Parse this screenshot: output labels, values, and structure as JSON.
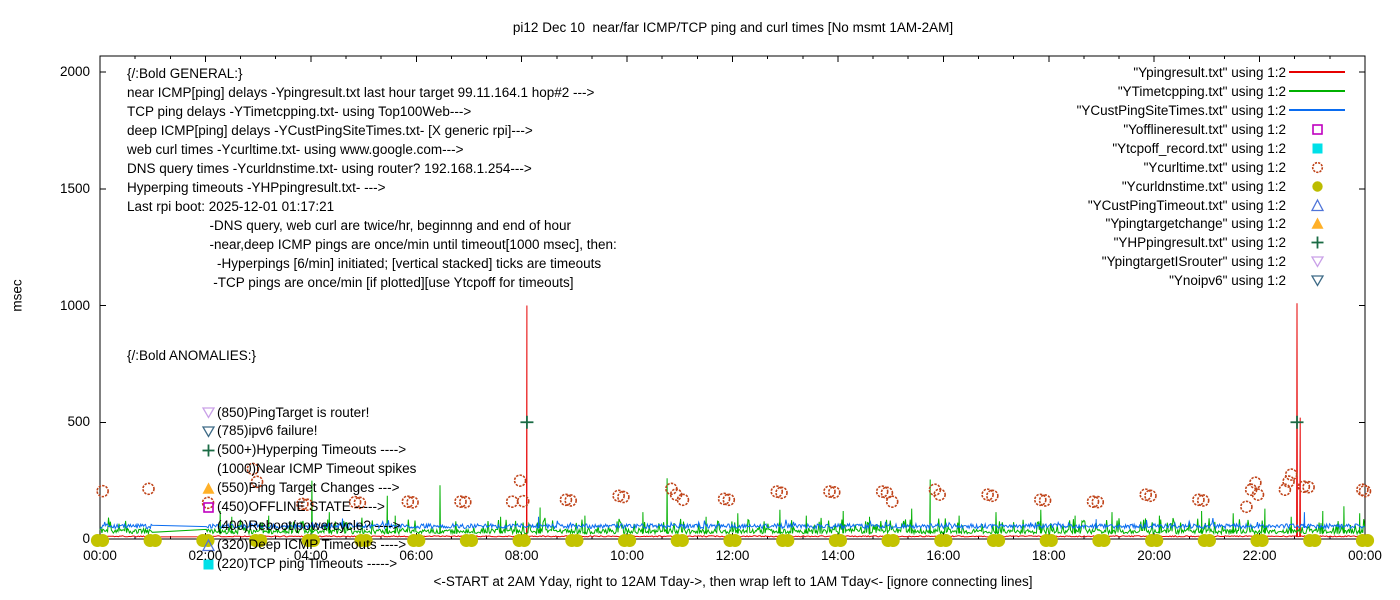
{
  "title": "pi12 Dec 10  near/far ICMP/TCP ping and curl times [No msmt 1AM-2AM]",
  "axes": {
    "ylabel": "msec",
    "x_note": "<-START at 2AM Yday, right to 12AM Tday->, then wrap left to 1AM Tday<- [ignore connecting lines]",
    "y_ticks": [
      0,
      500,
      1000,
      1500,
      2000
    ],
    "x_ticks": [
      "00:00",
      "02:00",
      "04:00",
      "06:00",
      "08:00",
      "10:00",
      "12:00",
      "14:00",
      "16:00",
      "18:00",
      "20:00",
      "22:00",
      "00:00"
    ]
  },
  "general_text": [
    "{/:Bold GENERAL:}",
    "near ICMP[ping] delays -Ypingresult.txt last hour target 99.11.164.1 hop#2 --->",
    "TCP ping delays -YTimetcpping.txt- using Top100Web--->",
    "deep ICMP[ping] delays -YCustPingSiteTimes.txt- [X generic rpi]--->",
    "web curl times -Ycurltime.txt- using www.google.com--->",
    "DNS query times -Ycurldnstime.txt- using router? 192.168.1.254--->",
    "Hyperping timeouts -YHPpingresult.txt- --->",
    "Last rpi boot: 2025-12-01 01:17:21",
    "                      -DNS query, web curl are twice/hr, beginnng and end of hour",
    "                      -near,deep ICMP pings are once/min until timeout[1000 msec], then:",
    "                        -Hyperpings [6/min] initiated; [vertical stacked] ticks are timeouts",
    "                       -TCP pings are once/min [if plotted][use Ytcpoff for timeouts]"
  ],
  "anomalies": {
    "header": "{/:Bold ANOMALIES:}",
    "rows": [
      {
        "marker": "tri-down-open",
        "color": "#c9a0e8",
        "text": "(850)PingTarget is router!"
      },
      {
        "marker": "tri-down-open",
        "color": "#3d6a86",
        "text": "(785)ipv6 failure!"
      },
      {
        "marker": "plus",
        "color": "#1a6b44",
        "text": "(500+)Hyperping Timeouts ---->"
      },
      {
        "marker": null,
        "color": null,
        "text": "(1000)Near ICMP Timeout spikes"
      },
      {
        "marker": "tri-up-filled",
        "color": "#ffb028",
        "text": "(550)Ping Target Changes --->"
      },
      {
        "marker": "square-open",
        "color": "#c000c0",
        "text": "(450)OFFLINE STATE ----->"
      },
      {
        "marker": null,
        "color": null,
        "text": "(400)Reboot/powercycle? ---->"
      },
      {
        "marker": "tri-up-open",
        "color": "#4f74d8",
        "text": "(320)Deep ICMP Timeouts ---->"
      },
      {
        "marker": "square-filled",
        "color": "#00e0e8",
        "text": "(220)TCP ping Timeouts ----->"
      }
    ]
  },
  "legend": [
    {
      "label": "\"Ypingresult.txt\" using 1:2",
      "sample": "line",
      "color": "#e60000"
    },
    {
      "label": "\"YTimetcpping.txt\" using 1:2",
      "sample": "line",
      "color": "#00b000"
    },
    {
      "label": "\"YCustPingSiteTimes.txt\" using 1:2",
      "sample": "line",
      "color": "#0a6cf0"
    },
    {
      "label": "\"Yofflineresult.txt\" using 1:2",
      "sample": "square-open",
      "color": "#c000c0"
    },
    {
      "label": "\"Ytcpoff_record.txt\" using 1:2",
      "sample": "square-filled",
      "color": "#00e0e8"
    },
    {
      "label": "\"Ycurltime.txt\" using 1:2",
      "sample": "circle-open",
      "color": "#c0441a"
    },
    {
      "label": "\"Ycurldnstime.txt\" using 1:2",
      "sample": "circle-filled",
      "color": "#bcbc00"
    },
    {
      "label": "\"YCustPingTimeout.txt\" using 1:2",
      "sample": "tri-up-open",
      "color": "#4f74d8"
    },
    {
      "label": "\"Ypingtargetchange\" using 1:2",
      "sample": "tri-up-filled",
      "color": "#ffb028"
    },
    {
      "label": "\"YHPpingresult.txt\" using 1:2",
      "sample": "plus",
      "color": "#1a6b44"
    },
    {
      "label": "\"YpingtargetISrouter\" using 1:2",
      "sample": "tri-down-open",
      "color": "#c9a0e8"
    },
    {
      "label": "\"Ynoipv6\" using 1:2",
      "sample": "tri-down-open",
      "color": "#3d6a86"
    }
  ],
  "chart_data": {
    "type": "line",
    "x_unit": "time of day, hours 0-24",
    "ylabel": "msec",
    "ylim": [
      0,
      2068
    ],
    "xlim_hours": [
      0,
      24
    ],
    "grid": false,
    "no_measurement_gap_hours": [
      1.0,
      2.0
    ],
    "legend_position": "top-right-inside",
    "noise_seed": 1337,
    "series": [
      {
        "name": "Ypingresult.txt",
        "type": "line",
        "color": "#e60000",
        "baseline_msec": [
          9,
          14
        ],
        "step_hours": 0.025,
        "spikes": [
          [
            8.1,
            1000
          ],
          [
            22.71,
            1010
          ],
          [
            22.77,
            520
          ]
        ]
      },
      {
        "name": "YTimetcpping.txt",
        "type": "line",
        "color": "#00b000",
        "baseline_msec": [
          22,
          42
        ],
        "burst_chance": 0.17,
        "burst_extra": 55,
        "step_hours": 0.018,
        "spikes": [
          [
            2.28,
            120
          ],
          [
            2.5,
            95
          ],
          [
            3.2,
            100
          ],
          [
            4.02,
            250
          ],
          [
            4.35,
            115
          ],
          [
            5.45,
            185
          ],
          [
            5.6,
            100
          ],
          [
            6.45,
            230
          ],
          [
            7.6,
            95
          ],
          [
            8.35,
            135
          ],
          [
            9.2,
            100
          ],
          [
            10.3,
            115
          ],
          [
            10.76,
            260
          ],
          [
            11.5,
            95
          ],
          [
            12.1,
            110
          ],
          [
            12.9,
            125
          ],
          [
            13.4,
            100
          ],
          [
            14.1,
            120
          ],
          [
            14.6,
            95
          ],
          [
            15.4,
            130
          ],
          [
            15.75,
            255
          ],
          [
            16.3,
            100
          ],
          [
            17.0,
            115
          ],
          [
            17.85,
            125
          ],
          [
            18.5,
            100
          ],
          [
            19.2,
            115
          ],
          [
            20.1,
            100
          ],
          [
            20.9,
            120
          ],
          [
            21.5,
            110
          ],
          [
            22.1,
            130
          ],
          [
            22.6,
            95
          ],
          [
            23.2,
            120
          ],
          [
            23.6,
            140
          ],
          [
            23.9,
            110
          ]
        ]
      },
      {
        "name": "YCustPingSiteTimes.txt",
        "type": "line",
        "color": "#0a6cf0",
        "baseline_msec": [
          45,
          65
        ],
        "burst_chance": 0.05,
        "burst_extra": 28,
        "step_hours": 0.018,
        "spikes": [
          [
            4.6,
            88
          ],
          [
            8.32,
            95
          ],
          [
            18.9,
            85
          ],
          [
            22.85,
            115
          ]
        ]
      },
      {
        "name": "Ycurltime.txt",
        "type": "scatter",
        "marker": "circle-open",
        "color": "#c0441a",
        "points": [
          [
            0.05,
            205
          ],
          [
            0.92,
            215
          ],
          [
            2.05,
            155
          ],
          [
            2.9,
            300
          ],
          [
            2.98,
            245
          ],
          [
            3.84,
            150
          ],
          [
            3.93,
            147
          ],
          [
            4.84,
            158
          ],
          [
            4.93,
            155
          ],
          [
            5.84,
            160
          ],
          [
            5.93,
            157
          ],
          [
            6.84,
            160
          ],
          [
            6.93,
            158
          ],
          [
            7.82,
            160
          ],
          [
            7.97,
            250
          ],
          [
            8.03,
            162
          ],
          [
            8.84,
            168
          ],
          [
            8.93,
            165
          ],
          [
            9.84,
            185
          ],
          [
            9.93,
            180
          ],
          [
            10.84,
            215
          ],
          [
            10.93,
            190
          ],
          [
            11.06,
            168
          ],
          [
            11.84,
            172
          ],
          [
            11.93,
            168
          ],
          [
            12.84,
            203
          ],
          [
            12.93,
            198
          ],
          [
            13.84,
            203
          ],
          [
            13.93,
            200
          ],
          [
            14.84,
            203
          ],
          [
            14.93,
            198
          ],
          [
            15.03,
            160
          ],
          [
            15.84,
            211
          ],
          [
            15.93,
            190
          ],
          [
            16.84,
            190
          ],
          [
            16.93,
            185
          ],
          [
            17.84,
            168
          ],
          [
            17.93,
            165
          ],
          [
            18.84,
            160
          ],
          [
            18.93,
            158
          ],
          [
            19.84,
            190
          ],
          [
            19.93,
            185
          ],
          [
            20.84,
            168
          ],
          [
            20.93,
            165
          ],
          [
            21.75,
            138
          ],
          [
            21.84,
            211
          ],
          [
            21.92,
            241
          ],
          [
            21.97,
            190
          ],
          [
            22.48,
            211
          ],
          [
            22.55,
            246
          ],
          [
            22.6,
            276
          ],
          [
            22.84,
            224
          ],
          [
            22.93,
            222
          ],
          [
            23.95,
            211
          ],
          [
            24.0,
            205
          ]
        ]
      },
      {
        "name": "Ycurldnstime.txt",
        "type": "scatter",
        "marker": "circle-filled",
        "color": "#c3c300",
        "hourly_pairs": {
          "from_hour": 0,
          "to_hour": 24,
          "value_msec": 5
        },
        "note": "twice/hr at beginning and end of hour; rendered as overlapping blobs on the time axis"
      },
      {
        "name": "YHPpingresult.txt",
        "type": "scatter",
        "marker": "plus",
        "color": "#1a6b44",
        "points": [
          [
            8.1,
            500
          ],
          [
            22.71,
            500
          ]
        ]
      }
    ]
  }
}
